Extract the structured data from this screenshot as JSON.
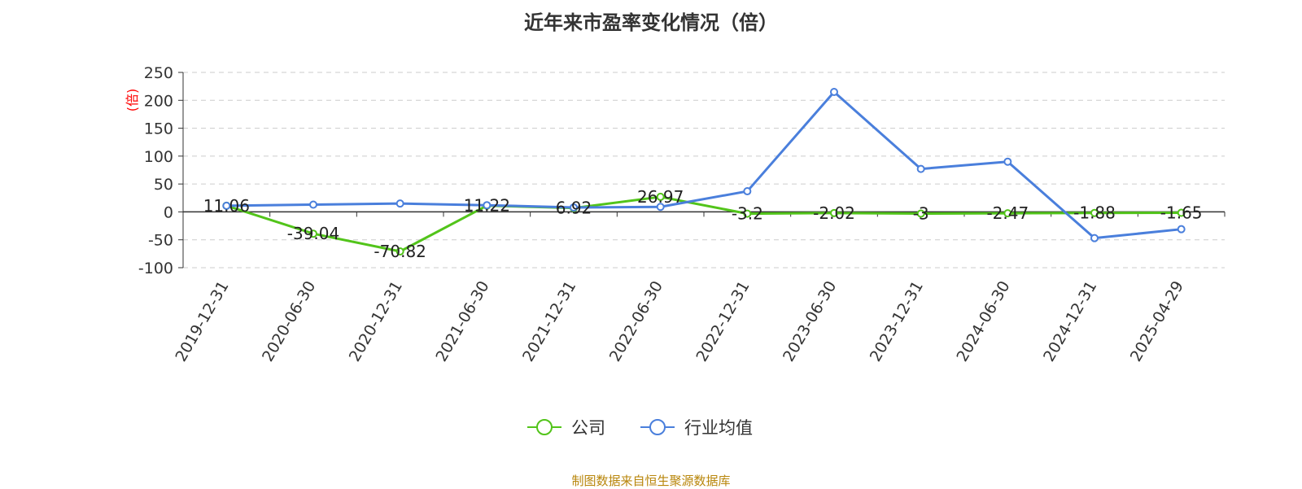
{
  "title": "近年来市盈率变化情况（倍）",
  "source_note": "制图数据来自恒生聚源数据库",
  "chart_data": {
    "type": "line",
    "title": "近年来市盈率变化情况（倍）",
    "ylabel": "(倍)",
    "xlabel": "",
    "categories": [
      "2019-12-31",
      "2020-06-30",
      "2020-12-31",
      "2021-06-30",
      "2021-12-31",
      "2022-06-30",
      "2022-12-31",
      "2023-06-30",
      "2023-12-31",
      "2024-06-30",
      "2024-12-31",
      "2025-04-29"
    ],
    "ylim": [
      -100,
      250
    ],
    "yticks": [
      250,
      200,
      150,
      100,
      50,
      0,
      -50,
      -100
    ],
    "grid": true,
    "legend_position": "bottom",
    "series": [
      {
        "name": "公司",
        "color": "#52c41a",
        "values": [
          11.06,
          -39.04,
          -70.82,
          11.22,
          6.92,
          26.97,
          -3.2,
          -2.02,
          -3,
          -2.47,
          -1.88,
          -1.65
        ],
        "labels": [
          "11.06",
          "-39.04",
          "-70.82",
          "11.22",
          "6.92",
          "26.97",
          "-3.2",
          "-2.02",
          "-3",
          "-2.47",
          "-1.88",
          "-1.65"
        ]
      },
      {
        "name": "行业均值",
        "color": "#4a7fdc",
        "values": [
          11,
          13,
          15,
          12,
          8,
          9,
          37,
          215,
          77,
          90,
          -47,
          -31
        ]
      }
    ]
  }
}
